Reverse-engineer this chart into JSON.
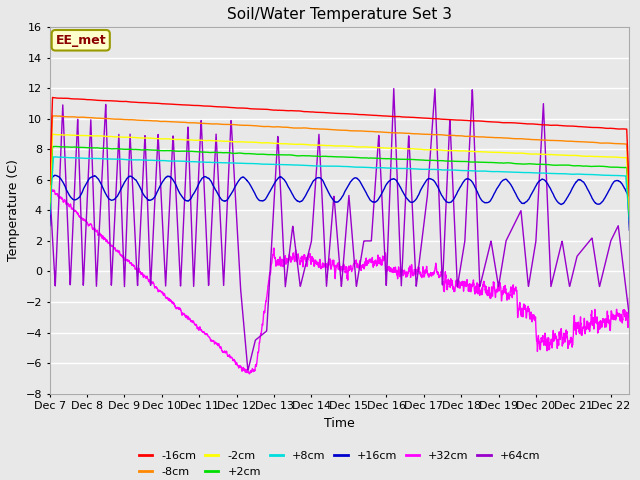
{
  "title": "Soil/Water Temperature Set 3",
  "xlabel": "Time",
  "ylabel": "Temperature (C)",
  "ylim": [
    -8,
    16
  ],
  "xlim": [
    0,
    15.5
  ],
  "annotation": "EE_met",
  "x_tick_labels": [
    "Dec 7",
    "Dec 8",
    "Dec 9",
    "Dec 10",
    "Dec 11",
    "Dec 12",
    "Dec 13",
    "Dec 14",
    "Dec 15",
    "Dec 16",
    "Dec 17",
    "Dec 18",
    "Dec 19",
    "Dec 20",
    "Dec 21",
    "Dec 22"
  ],
  "legend_entries": [
    "-16cm",
    "-8cm",
    "-2cm",
    "+2cm",
    "+8cm",
    "+16cm",
    "+32cm",
    "+64cm"
  ],
  "legend_colors": [
    "#ff0000",
    "#ff8800",
    "#ffff00",
    "#00dd00",
    "#00dddd",
    "#0000cc",
    "#ff00ff",
    "#9900cc"
  ],
  "bg_color": "#e8e8e8",
  "grid_color": "#ffffff",
  "plot_bg": "#d8d8d8"
}
